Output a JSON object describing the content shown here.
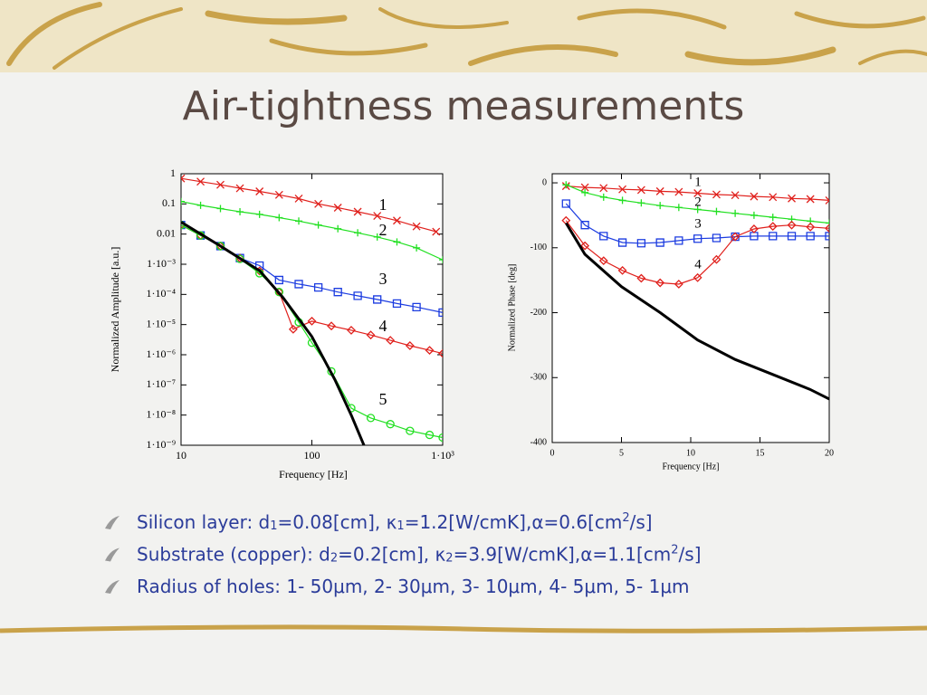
{
  "title": "Air-tightness measurements",
  "bullets": [
    [
      {
        "text": "Silicon layer: d"
      },
      {
        "sub": "1"
      },
      {
        "text": "=0.08[cm], κ"
      },
      {
        "sub": "1"
      },
      {
        "text": "=1.2[W/cmK],α=0.6[cm"
      },
      {
        "sup": "2"
      },
      {
        "text": "/s]"
      }
    ],
    [
      {
        "text": "Substrate (copper): d"
      },
      {
        "sub": "2"
      },
      {
        "text": "=0.2[cm], κ"
      },
      {
        "sub": "2"
      },
      {
        "text": "=3.9[W/cmK],α=1.1[cm"
      },
      {
        "sup": "2"
      },
      {
        "text": "/s]"
      }
    ],
    [
      {
        "text": "Radius of holes: 1- 50μm, 2- 30μm, 3- 10μm, 4- 5μm, 5- 1μm"
      }
    ]
  ],
  "chart_data": [
    {
      "type": "line",
      "xscale": "log",
      "yscale": "log",
      "xlabel": "Frequency [Hz]",
      "ylabel": "Normalized Amplitude [a.u.]",
      "xlim": [
        10,
        1000
      ],
      "ylim": [
        1e-09,
        1
      ],
      "xticks": [
        10,
        100,
        {
          "value": 1000,
          "label": "1·10³"
        }
      ],
      "yticks": [
        1,
        0.1,
        0.01,
        {
          "value": 0.001,
          "label": "1·10⁻³"
        },
        {
          "value": 0.0001,
          "label": "1·10⁻⁴"
        },
        {
          "value": 1e-05,
          "label": "1·10⁻⁵"
        },
        {
          "value": 1e-06,
          "label": "1·10⁻⁶"
        },
        {
          "value": 1e-07,
          "label": "1·10⁻⁷"
        },
        {
          "value": 1e-08,
          "label": "1·10⁻⁸"
        },
        {
          "value": 1e-09,
          "label": "1·10⁻⁹"
        }
      ],
      "series": [
        {
          "name": "1",
          "color": "#e0201c",
          "marker": "x",
          "x": [
            10,
            14.1,
            20,
            28.2,
            39.8,
            56.2,
            79.4,
            112,
            158,
            224,
            316,
            447,
            631,
            891
          ],
          "values": [
            0.7,
            0.55,
            0.43,
            0.33,
            0.26,
            0.2,
            0.15,
            0.1,
            0.075,
            0.055,
            0.04,
            0.028,
            0.018,
            0.012
          ]
        },
        {
          "name": "2",
          "color": "#22e022",
          "marker": "+",
          "x": [
            10,
            14.1,
            20,
            28.2,
            39.8,
            56.2,
            79.4,
            112,
            158,
            224,
            316,
            447,
            631,
            1000
          ],
          "values": [
            0.12,
            0.09,
            0.07,
            0.055,
            0.045,
            0.035,
            0.027,
            0.02,
            0.015,
            0.011,
            0.008,
            0.0055,
            0.0035,
            0.0014
          ]
        },
        {
          "name": "3",
          "color": "#1c3ce0",
          "marker": "square",
          "x": [
            10,
            14.1,
            20,
            28.2,
            39.8,
            56.2,
            79.4,
            112,
            158,
            224,
            316,
            447,
            631,
            1000
          ],
          "values": [
            0.02,
            0.009,
            0.004,
            0.0016,
            0.0009,
            0.0003,
            0.00022,
            0.00017,
            0.00012,
            9e-05,
            6.8e-05,
            5e-05,
            3.8e-05,
            2.5e-05
          ]
        },
        {
          "name": "4",
          "color": "#e0201c",
          "marker": "diamond",
          "x": [
            10,
            14.1,
            20,
            28.2,
            39.8,
            56.2,
            72,
            100,
            141,
            200,
            282,
            398,
            562,
            794,
            1000
          ],
          "values": [
            0.02,
            0.009,
            0.004,
            0.0016,
            0.0006,
            0.00012,
            7e-06,
            1.3e-05,
            9e-06,
            6.5e-06,
            4.5e-06,
            3e-06,
            2e-06,
            1.4e-06,
            1.1e-06
          ]
        },
        {
          "name": "5",
          "color": "#22e022",
          "marker": "circle",
          "x": [
            10,
            14.1,
            20,
            28.2,
            39.8,
            56.2,
            79.4,
            100,
            141,
            200,
            282,
            398,
            562,
            794,
            1000
          ],
          "values": [
            0.02,
            0.009,
            0.004,
            0.0015,
            0.0005,
            0.00012,
            1.2e-05,
            2.5e-06,
            2.8e-07,
            1.7e-08,
            8e-09,
            5e-09,
            3e-09,
            2.2e-09,
            1.8e-09
          ]
        },
        {
          "color": "#000000",
          "marker": "none",
          "x": [
            10,
            20,
            40,
            60,
            100,
            150,
            200,
            250
          ],
          "values": [
            0.025,
            0.004,
            0.0006,
            8e-05,
            4e-06,
            1.5e-07,
            1e-08,
            1e-09
          ]
        }
      ]
    },
    {
      "type": "line",
      "xscale": "linear",
      "yscale": "linear",
      "xlabel": "Frequency [Hz]",
      "ylabel": "Normalized Phase [deg]",
      "xlim": [
        0,
        20
      ],
      "ylim": [
        -400,
        14
      ],
      "xticks": [
        0,
        5,
        10,
        15,
        20
      ],
      "yticks": [
        0,
        -100,
        -200,
        -300,
        -400
      ],
      "series": [
        {
          "name": "1",
          "color": "#e0201c",
          "marker": "x",
          "x": [
            1,
            2.36,
            3.71,
            5.07,
            6.43,
            7.79,
            9.14,
            10.5,
            11.86,
            13.21,
            14.57,
            15.93,
            17.29,
            18.64,
            20
          ],
          "values": [
            -5,
            -7,
            -8,
            -10,
            -11,
            -13,
            -14,
            -16,
            -18,
            -19,
            -21,
            -22,
            -24,
            -25,
            -27
          ]
        },
        {
          "name": "2",
          "color": "#22e022",
          "marker": "+",
          "x": [
            1,
            2.36,
            3.71,
            5.07,
            6.43,
            7.79,
            9.14,
            10.5,
            11.86,
            13.21,
            14.57,
            15.93,
            17.29,
            18.64,
            20
          ],
          "values": [
            -3,
            -15,
            -22,
            -27,
            -31,
            -35,
            -38,
            -41,
            -44,
            -47,
            -50,
            -53,
            -56,
            -59,
            -62
          ]
        },
        {
          "name": "3",
          "color": "#1c3ce0",
          "marker": "square",
          "x": [
            1,
            2.36,
            3.71,
            5.07,
            6.43,
            7.79,
            9.14,
            10.5,
            11.86,
            13.21,
            14.57,
            15.93,
            17.29,
            18.64,
            20
          ],
          "values": [
            -32,
            -65,
            -82,
            -92,
            -93,
            -92,
            -89,
            -86,
            -85,
            -83,
            -82,
            -82,
            -82,
            -82,
            -82
          ]
        },
        {
          "name": "4",
          "color": "#e0201c",
          "marker": "diamond",
          "x": [
            1,
            2.36,
            3.71,
            5.07,
            6.43,
            7.79,
            9.14,
            10.5,
            11.86,
            13.21,
            14.57,
            15.93,
            17.29,
            18.64,
            20
          ],
          "values": [
            -58,
            -97,
            -120,
            -135,
            -147,
            -154,
            -156,
            -146,
            -118,
            -83,
            -71,
            -67,
            -65,
            -68,
            -70
          ]
        },
        {
          "color": "#000000",
          "marker": "none",
          "x": [
            1,
            2.36,
            5,
            7.8,
            10.5,
            13.2,
            15.9,
            18.6,
            20
          ],
          "values": [
            -62,
            -110,
            -160,
            -200,
            -242,
            -272,
            -295,
            -318,
            -333
          ]
        }
      ]
    }
  ]
}
